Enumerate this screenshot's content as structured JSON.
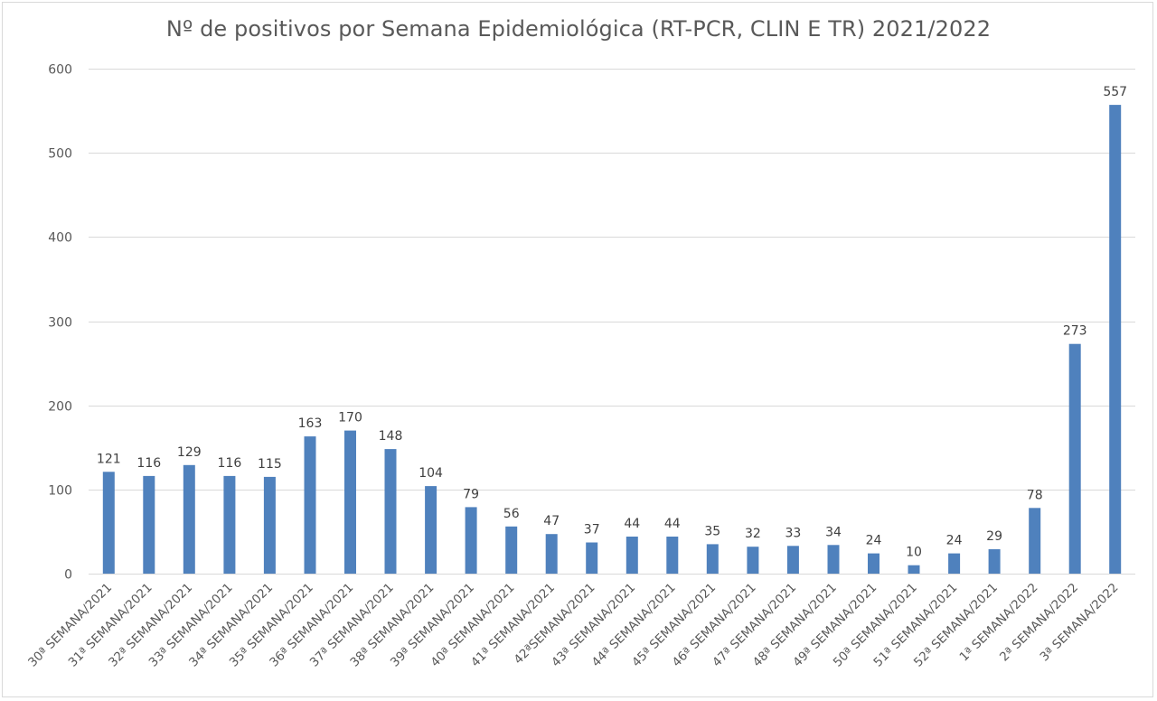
{
  "chart_data": {
    "type": "bar",
    "title": "Nº de positivos por Semana Epidemiológica (RT-PCR, CLIN E TR) 2021/2022",
    "xlabel": "",
    "ylabel": "",
    "ylim": [
      0,
      600
    ],
    "yticks": [
      0,
      100,
      200,
      300,
      400,
      500,
      600
    ],
    "grid": true,
    "legend": "none",
    "colors": {
      "bar": "#4f81bd",
      "grid": "#d9d9d9",
      "text": "#595959"
    },
    "categories": [
      "30ª SEMANA/2021",
      "31ª SEMANA/2021",
      "32ª SEMANA/2021",
      "33ª SEMANA/2021",
      "34ª SEMANA/2021",
      "35ª SEMANA/2021",
      "36ª SEMANA/2021",
      "37ª SEMANA/2021",
      "38ª SEMANA/2021",
      "39ª SEMANA/2021",
      "40ª SEMANA/2021",
      "41ª SEMANA/2021",
      "42ªSEMANA/2021",
      "43ª SEMANA/2021",
      "44ª SEMANA/2021",
      "45ª SEMANA/2021",
      "46ª SEMANA/2021",
      "47ª SEMANA/2021",
      "48ª SEMANA/2021",
      "49ª SEMANA/2021",
      "50ª SEMANA/2021",
      "51ª SEMANA/2021",
      "52ª SEMANA/2021",
      "1ª SEMANA/2022",
      "2ª SEMANA/2022",
      "3ª SEMANA/2022"
    ],
    "values": [
      121,
      116,
      129,
      116,
      115,
      163,
      170,
      148,
      104,
      79,
      56,
      47,
      37,
      44,
      44,
      35,
      32,
      33,
      34,
      24,
      10,
      24,
      29,
      78,
      273,
      557
    ]
  }
}
